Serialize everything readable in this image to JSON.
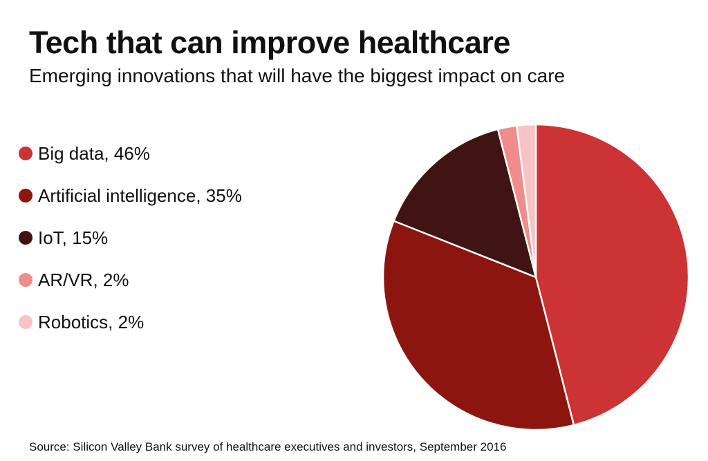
{
  "chart_data": {
    "type": "pie",
    "title": "Tech that can improve healthcare",
    "subtitle": "Emerging innovations that will have the biggest impact on care",
    "categories": [
      "Big data, 46%",
      "Artificial intelligence, 35%",
      "IoT, 15%",
      "AR/VR, 2%",
      "Robotics, 2%"
    ],
    "values": [
      46,
      35,
      15,
      2,
      2
    ],
    "colors": [
      "#cc3335",
      "#8c1510",
      "#401413",
      "#f08c8c",
      "#f7c3c5"
    ],
    "source": "Source: Silicon Valley Bank survey of healthcare executives and investors, September 2016"
  }
}
